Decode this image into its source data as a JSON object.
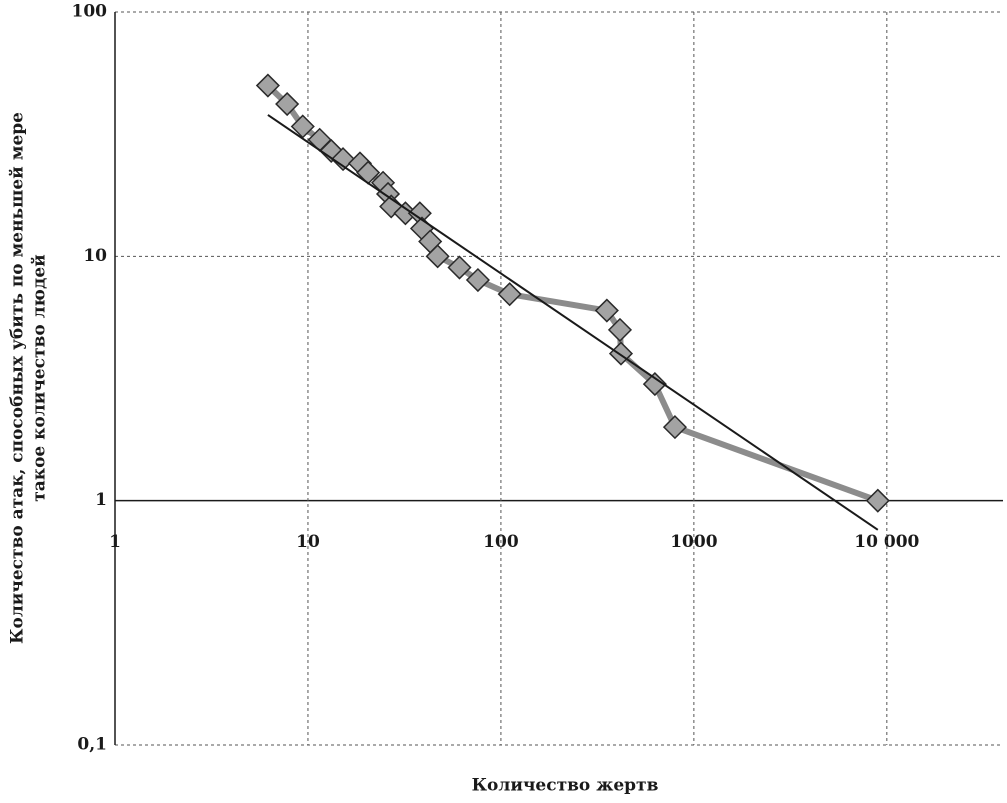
{
  "chart_data": {
    "type": "line",
    "log_x": true,
    "log_y": true,
    "grid": true,
    "xaxis_at": 1,
    "xlabel": "Количество жертв",
    "ylabel": [
      "Количество атак, способных убить по меньшей мере",
      "такое количество людей"
    ],
    "xlim": [
      1,
      40000
    ],
    "ylim": [
      0.1,
      100
    ],
    "xticks": [
      1,
      10,
      100,
      1000,
      {
        "value": 10000,
        "label": "10 000"
      }
    ],
    "yticks": [
      {
        "value": 0.1,
        "label": "0,1"
      },
      1,
      10,
      100
    ],
    "series": [
      {
        "color": "#8c8c8c",
        "marker_color": "#a3a3a3",
        "markers": true,
        "x": [
          6.2,
          7.8,
          9.4,
          11.5,
          13.2,
          15.2,
          18.6,
          20.5,
          24.5,
          26,
          27,
          32,
          38,
          39,
          43,
          47,
          61,
          76,
          111,
          354,
          414,
          419,
          628,
          798,
          8980
        ],
        "values": [
          50,
          42,
          34,
          30,
          27,
          25,
          24,
          22,
          20,
          18,
          16,
          15,
          15,
          13,
          11.5,
          10,
          9,
          8,
          7,
          6,
          5,
          4,
          3,
          2,
          1
        ]
      },
      {
        "color": "#1a1a1a",
        "markers": false,
        "x": [
          6.2,
          8980
        ],
        "values": [
          37.9,
          0.76
        ]
      }
    ]
  }
}
